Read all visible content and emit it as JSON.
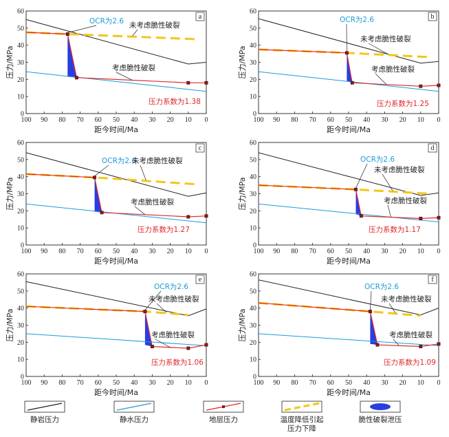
{
  "legend": [
    {
      "key": "lithostatic",
      "label": "静岩压力",
      "color": "#222222"
    },
    {
      "key": "hydrostatic",
      "label": "静水压力",
      "color": "#1b9bd8"
    },
    {
      "key": "formation",
      "label": "地层压力",
      "color": "#e0282a"
    },
    {
      "key": "temp_drop",
      "label": "温度降低引起\n压力下降",
      "color": "#f5c518"
    },
    {
      "key": "brittle_release",
      "label": "脆性破裂泄压",
      "color": "#2a3de0"
    }
  ],
  "axis_labels": {
    "x": "距今时间/Ma",
    "y": "压力/MPa"
  },
  "annotation_texts": {
    "ocr": "OCR为2.6",
    "no_brittle": "未考虑脆性破裂",
    "brittle": "考虑脆性破裂"
  },
  "chart_data": [
    {
      "panel": "a",
      "type": "line",
      "xlim": [
        100,
        0
      ],
      "ylim": [
        0,
        60
      ],
      "xticks": [
        100,
        90,
        80,
        70,
        60,
        50,
        40,
        30,
        20,
        10,
        0
      ],
      "yticks": [
        0,
        10,
        20,
        30,
        40,
        50,
        60
      ],
      "xlabel": "距今时间/Ma",
      "ylabel": "压力/MPa",
      "lithostatic": [
        [
          100,
          55
        ],
        [
          10,
          29
        ],
        [
          0,
          30
        ]
      ],
      "hydrostatic": [
        [
          100,
          24.5
        ],
        [
          0,
          13
        ]
      ],
      "formation": [
        [
          100,
          47.5
        ],
        [
          77,
          46.5
        ],
        [
          72,
          21
        ],
        [
          10,
          18
        ],
        [
          0,
          18
        ]
      ],
      "temp_drop": [
        [
          77,
          46.5
        ],
        [
          5,
          43.5
        ]
      ],
      "release_polygon": [
        [
          77,
          46.5
        ],
        [
          72,
          21
        ],
        [
          77,
          21.5
        ]
      ],
      "pressure_coefficient_label": "压力系数为1.38",
      "ocr_label": "OCR为2.6",
      "no_brittle_label": "未考虑脆性破裂",
      "brittle_label": "考虑脆性破裂"
    },
    {
      "panel": "b",
      "type": "line",
      "xlim": [
        100,
        0
      ],
      "ylim": [
        0,
        60
      ],
      "xticks": [
        100,
        90,
        80,
        70,
        60,
        50,
        40,
        30,
        20,
        10,
        0
      ],
      "yticks": [
        0,
        10,
        20,
        30,
        40,
        50,
        60
      ],
      "xlabel": "距今时间/Ma",
      "ylabel": "压力/MPa",
      "lithostatic": [
        [
          100,
          55.5
        ],
        [
          10,
          29.5
        ],
        [
          0,
          30.5
        ]
      ],
      "hydrostatic": [
        [
          100,
          24.5
        ],
        [
          0,
          13
        ]
      ],
      "formation": [
        [
          100,
          37.5
        ],
        [
          51,
          35.5
        ],
        [
          48,
          18
        ],
        [
          10,
          16
        ],
        [
          0,
          16.5
        ]
      ],
      "temp_drop": [
        [
          51,
          35.5
        ],
        [
          5,
          33
        ]
      ],
      "release_polygon": [
        [
          51,
          35.5
        ],
        [
          48,
          18
        ],
        [
          51,
          19
        ]
      ],
      "pressure_coefficient_label": "压力系数为1.25",
      "ocr_label": "OCR为2.6",
      "no_brittle_label": "未考虑脆性破裂",
      "brittle_label": "考虑脆性破裂"
    },
    {
      "panel": "c",
      "type": "line",
      "xlim": [
        100,
        0
      ],
      "ylim": [
        0,
        60
      ],
      "xticks": [
        100,
        90,
        80,
        70,
        60,
        50,
        40,
        30,
        20,
        10,
        0
      ],
      "yticks": [
        0,
        10,
        20,
        30,
        40,
        50,
        60
      ],
      "xlabel": "距今时间/Ma",
      "ylabel": "压力/MPa",
      "lithostatic": [
        [
          100,
          54
        ],
        [
          10,
          28.5
        ],
        [
          0,
          30.5
        ]
      ],
      "hydrostatic": [
        [
          100,
          24
        ],
        [
          0,
          13
        ]
      ],
      "formation": [
        [
          100,
          41.5
        ],
        [
          62,
          39.5
        ],
        [
          58,
          19
        ],
        [
          10,
          16.5
        ],
        [
          0,
          17
        ]
      ],
      "temp_drop": [
        [
          62,
          39.5
        ],
        [
          5,
          35.5
        ]
      ],
      "release_polygon": [
        [
          62,
          39.5
        ],
        [
          58,
          19
        ],
        [
          62,
          19.5
        ]
      ],
      "pressure_coefficient_label": "压力系数为1.27",
      "ocr_label": "OCR为2.6",
      "no_brittle_label": "未考虑脆性破裂",
      "brittle_label": "考虑脆性破裂"
    },
    {
      "panel": "d",
      "type": "line",
      "xlim": [
        100,
        0
      ],
      "ylim": [
        0,
        60
      ],
      "xticks": [
        100,
        90,
        80,
        70,
        60,
        50,
        40,
        30,
        20,
        10,
        0
      ],
      "yticks": [
        0,
        10,
        20,
        30,
        40,
        50,
        60
      ],
      "xlabel": "距今时间/Ma",
      "ylabel": "压力/MPa",
      "lithostatic": [
        [
          100,
          54
        ],
        [
          10,
          29
        ],
        [
          0,
          30.5
        ]
      ],
      "hydrostatic": [
        [
          100,
          24
        ],
        [
          0,
          13.5
        ]
      ],
      "formation": [
        [
          100,
          35
        ],
        [
          46,
          32.5
        ],
        [
          43,
          17
        ],
        [
          10,
          15.5
        ],
        [
          0,
          16
        ]
      ],
      "temp_drop": [
        [
          46,
          32.5
        ],
        [
          5,
          30
        ]
      ],
      "release_polygon": [
        [
          46,
          32.5
        ],
        [
          43,
          17
        ],
        [
          46,
          18
        ]
      ],
      "pressure_coefficient_label": "压力系数为1.17",
      "ocr_label": "OCR为2.6",
      "no_brittle_label": "未考虑脆性破裂",
      "brittle_label": "考虑脆性破裂"
    },
    {
      "panel": "e",
      "type": "line",
      "xlim": [
        100,
        0
      ],
      "ylim": [
        0,
        60
      ],
      "xticks": [
        100,
        90,
        80,
        70,
        60,
        50,
        40,
        30,
        20,
        10,
        0
      ],
      "yticks": [
        0,
        10,
        20,
        30,
        40,
        50,
        60
      ],
      "xlabel": "距今时间/Ma",
      "ylabel": "压力/MPa",
      "lithostatic": [
        [
          100,
          55.5
        ],
        [
          10,
          35.5
        ],
        [
          0,
          39.5
        ]
      ],
      "hydrostatic": [
        [
          100,
          25
        ],
        [
          0,
          18
        ]
      ],
      "formation": [
        [
          100,
          41
        ],
        [
          34,
          38
        ],
        [
          30,
          17.5
        ],
        [
          10,
          16.5
        ],
        [
          0,
          18.5
        ]
      ],
      "temp_drop": [
        [
          34,
          38
        ],
        [
          10,
          36
        ]
      ],
      "release_polygon": [
        [
          34,
          38
        ],
        [
          30,
          17.5
        ],
        [
          34,
          18.5
        ]
      ],
      "pressure_coefficient_label": "压力系数为1.06",
      "ocr_label": "OCR为2.6",
      "no_brittle_label": "未考虑脆性破裂",
      "brittle_label": "考虑脆性破裂"
    },
    {
      "panel": "f",
      "type": "line",
      "xlim": [
        100,
        0
      ],
      "ylim": [
        0,
        60
      ],
      "xticks": [
        100,
        90,
        80,
        70,
        60,
        50,
        40,
        30,
        20,
        10,
        0
      ],
      "yticks": [
        0,
        10,
        20,
        30,
        40,
        50,
        60
      ],
      "xlabel": "距今时间/Ma",
      "ylabel": "压力/MPa",
      "lithostatic": [
        [
          100,
          56.5
        ],
        [
          10,
          36
        ],
        [
          0,
          40
        ]
      ],
      "hydrostatic": [
        [
          100,
          25
        ],
        [
          0,
          18
        ]
      ],
      "formation": [
        [
          100,
          43
        ],
        [
          38,
          38
        ],
        [
          34,
          18.5
        ],
        [
          10,
          17.5
        ],
        [
          0,
          19
        ]
      ],
      "temp_drop": [
        [
          38,
          38
        ],
        [
          10,
          35.5
        ]
      ],
      "release_polygon": [
        [
          38,
          38
        ],
        [
          34,
          18.5
        ],
        [
          38,
          19
        ]
      ],
      "pressure_coefficient_label": "压力系数为1.09",
      "ocr_label": "OCR为2.6",
      "no_brittle_label": "未考虑脆性破裂",
      "brittle_label": "考虑脆性破裂"
    }
  ]
}
